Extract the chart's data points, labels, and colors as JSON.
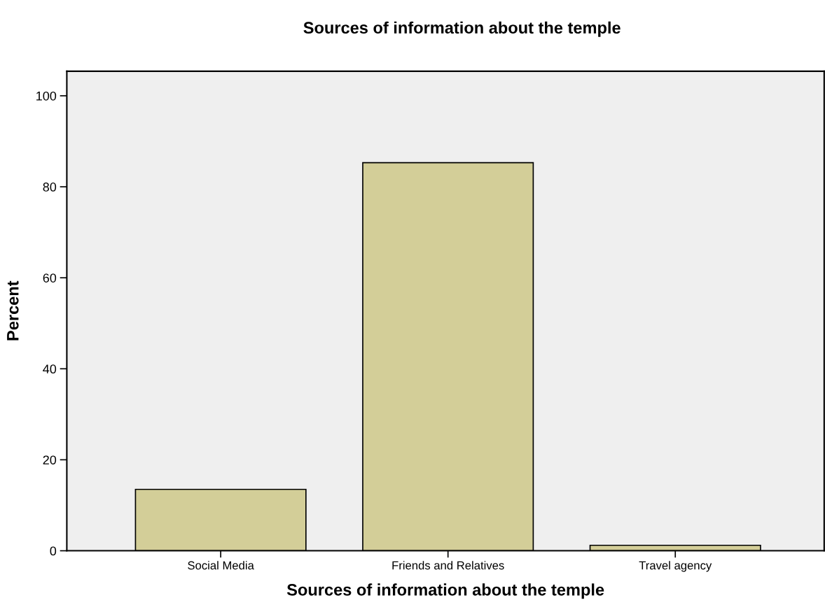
{
  "chart_data": {
    "type": "bar",
    "title": "Sources of information about the temple",
    "xlabel": "Sources of information about the temple",
    "ylabel": "Percent",
    "categories": [
      "Social Media",
      "Friends and Relatives",
      "Travel agency"
    ],
    "values": [
      13.5,
      85.3,
      1.2
    ],
    "color": "#d3ce98",
    "ylim": [
      0,
      105.4
    ],
    "yticks": [
      0,
      20,
      40,
      60,
      80,
      100
    ],
    "grid": false
  }
}
